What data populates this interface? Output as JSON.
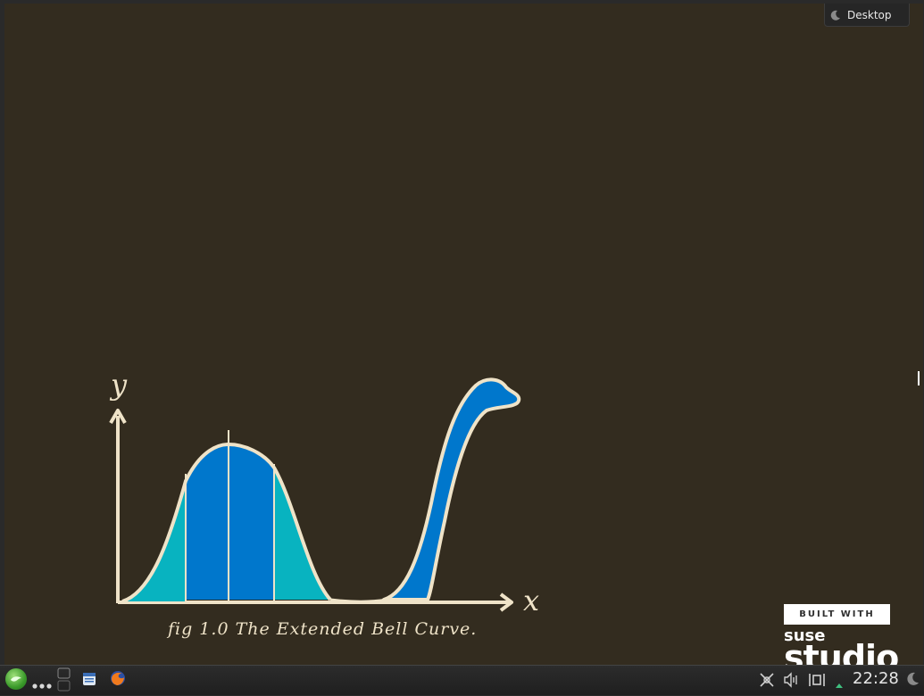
{
  "desktop_widget": {
    "label": "Desktop"
  },
  "wallpaper": {
    "y_axis_label": "y",
    "x_axis_label": "x",
    "caption": "fig 1.0   The Extended Bell Curve.",
    "colors": {
      "background": "#332c1f",
      "outline": "#efe3c8",
      "teal": "#08b3c0",
      "blue": "#0077cc"
    }
  },
  "branding": {
    "built_with": "BUILT WITH",
    "suse": "suse",
    "studio": "studio"
  },
  "taskbar": {
    "launcher_icon": "opensuse-gecko-icon",
    "clock": "22:28",
    "icons": [
      "dots-icon",
      "virtual-desktop-pager-icon",
      "dolphin-file-manager-icon",
      "firefox-icon",
      "network-disconnected-icon",
      "volume-icon",
      "clipboard-icon",
      "expand-tray-arrow-icon",
      "plasma-toolbox-icon"
    ]
  }
}
